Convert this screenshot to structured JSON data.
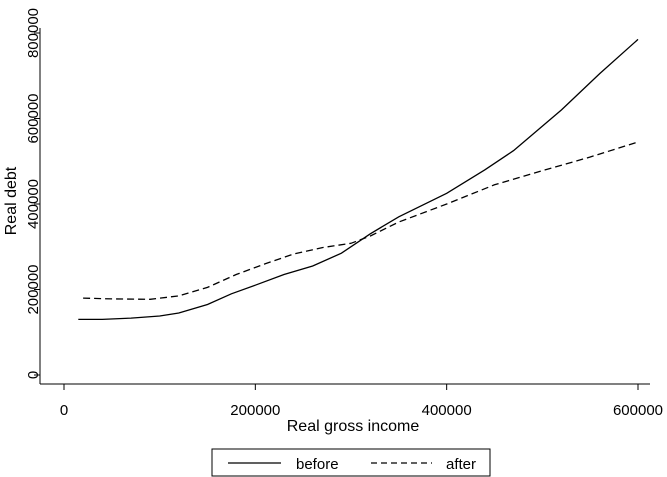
{
  "chart_data": {
    "type": "line",
    "title": "",
    "xlabel": "Real gross income",
    "ylabel": "Real debt",
    "xlim": [
      0,
      610000
    ],
    "ylim": [
      0,
      820000
    ],
    "x_ticks": [
      {
        "value": 0,
        "label": "0"
      },
      {
        "value": 200000,
        "label": "200000"
      },
      {
        "value": 400000,
        "label": "400000"
      },
      {
        "value": 600000,
        "label": "600000"
      }
    ],
    "y_ticks": [
      {
        "value": 0,
        "label": "0"
      },
      {
        "value": 200000,
        "label": "200000"
      },
      {
        "value": 400000,
        "label": "400000"
      },
      {
        "value": 600000,
        "label": "600000"
      },
      {
        "value": 800000,
        "label": "800000"
      }
    ],
    "grid": false,
    "legend": {
      "position": "bottom"
    },
    "series": [
      {
        "name": "before",
        "style": "solid",
        "color": "#000000",
        "points": [
          [
            15000,
            130000
          ],
          [
            40000,
            130000
          ],
          [
            70000,
            133000
          ],
          [
            100000,
            138000
          ],
          [
            120000,
            145000
          ],
          [
            150000,
            165000
          ],
          [
            175000,
            190000
          ],
          [
            200000,
            210000
          ],
          [
            230000,
            235000
          ],
          [
            260000,
            255000
          ],
          [
            290000,
            285000
          ],
          [
            320000,
            330000
          ],
          [
            350000,
            370000
          ],
          [
            400000,
            425000
          ],
          [
            440000,
            480000
          ],
          [
            470000,
            525000
          ],
          [
            520000,
            620000
          ],
          [
            560000,
            705000
          ],
          [
            600000,
            785000
          ]
        ]
      },
      {
        "name": "after",
        "style": "dashed",
        "color": "#000000",
        "points": [
          [
            20000,
            180000
          ],
          [
            50000,
            178000
          ],
          [
            90000,
            177000
          ],
          [
            120000,
            185000
          ],
          [
            150000,
            205000
          ],
          [
            180000,
            235000
          ],
          [
            210000,
            260000
          ],
          [
            240000,
            283000
          ],
          [
            270000,
            298000
          ],
          [
            300000,
            308000
          ],
          [
            320000,
            325000
          ],
          [
            350000,
            358000
          ],
          [
            400000,
            400000
          ],
          [
            450000,
            445000
          ],
          [
            500000,
            478000
          ],
          [
            550000,
            510000
          ],
          [
            600000,
            545000
          ]
        ]
      }
    ]
  }
}
